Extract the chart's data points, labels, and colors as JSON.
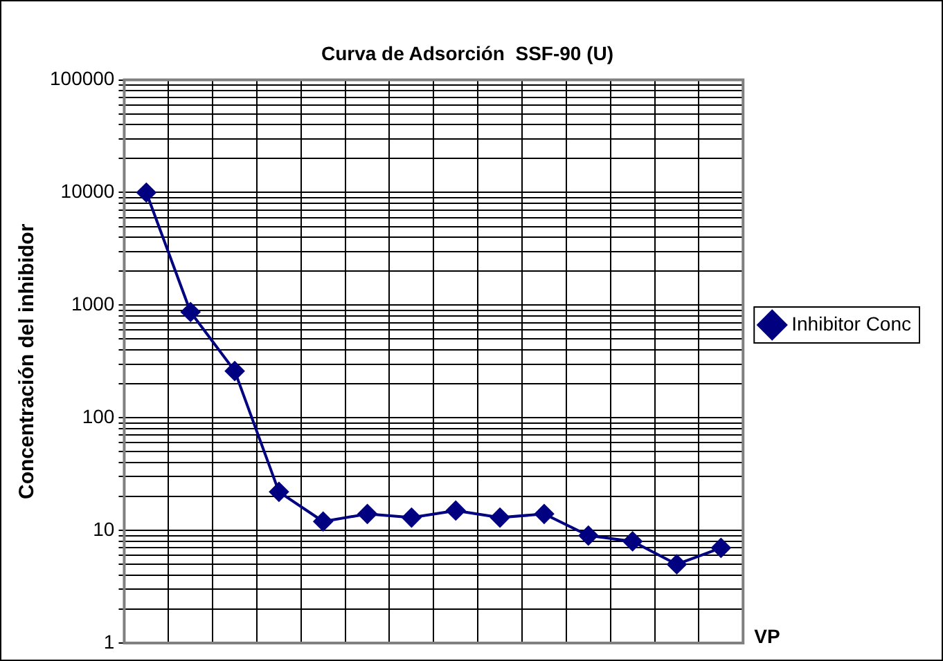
{
  "chart_data": {
    "type": "line",
    "title": "Curva de Adsorción  SSF-90 (U)",
    "xlabel": "VP",
    "ylabel": "Concentración del inhibidor",
    "categories": [
      null,
      null,
      null,
      null,
      null,
      null,
      null,
      null,
      null,
      null,
      null,
      null,
      null,
      null
    ],
    "series": [
      {
        "name": "Inhibitor Conc",
        "color": "#000080",
        "values": [
          10000,
          870,
          260,
          22,
          12,
          14,
          13,
          15,
          13,
          14,
          9,
          8,
          5,
          7
        ]
      }
    ],
    "log": "y",
    "ylim": [
      1,
      100000
    ],
    "yticks": [
      1,
      {
        "value": 2,
        "label": null
      },
      {
        "value": 3,
        "label": null
      },
      {
        "value": 4,
        "label": null
      },
      {
        "value": 5,
        "label": null
      },
      {
        "value": 6,
        "label": null
      },
      {
        "value": 7,
        "label": null
      },
      {
        "value": 8,
        "label": null
      },
      {
        "value": 9,
        "label": null
      },
      10,
      {
        "value": 20,
        "label": null
      },
      {
        "value": 30,
        "label": null
      },
      {
        "value": 40,
        "label": null
      },
      {
        "value": 50,
        "label": null
      },
      {
        "value": 60,
        "label": null
      },
      {
        "value": 70,
        "label": null
      },
      {
        "value": 80,
        "label": null
      },
      {
        "value": 90,
        "label": null
      },
      100,
      {
        "value": 200,
        "label": null
      },
      {
        "value": 300,
        "label": null
      },
      {
        "value": 400,
        "label": null
      },
      {
        "value": 500,
        "label": null
      },
      {
        "value": 600,
        "label": null
      },
      {
        "value": 700,
        "label": null
      },
      {
        "value": 800,
        "label": null
      },
      {
        "value": 900,
        "label": null
      },
      1000,
      {
        "value": 2000,
        "label": null
      },
      {
        "value": 3000,
        "label": null
      },
      {
        "value": 4000,
        "label": null
      },
      {
        "value": 5000,
        "label": null
      },
      {
        "value": 6000,
        "label": null
      },
      {
        "value": 7000,
        "label": null
      },
      {
        "value": 8000,
        "label": null
      },
      {
        "value": 9000,
        "label": null
      },
      10000,
      {
        "value": 20000,
        "label": null
      },
      {
        "value": 30000,
        "label": null
      },
      {
        "value": 40000,
        "label": null
      },
      {
        "value": 50000,
        "label": null
      },
      {
        "value": 60000,
        "label": null
      },
      {
        "value": 70000,
        "label": null
      },
      {
        "value": 80000,
        "label": null
      },
      {
        "value": 90000,
        "label": null
      },
      100000
    ],
    "grid": true,
    "legend": "right",
    "marker": "diamond",
    "line_style": "solid",
    "tick_labels": "y"
  }
}
